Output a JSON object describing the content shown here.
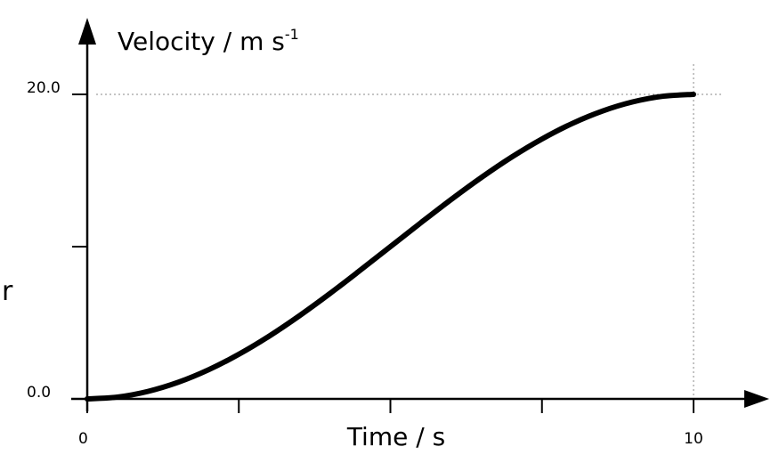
{
  "chart_data": {
    "type": "line",
    "xlabel": "Time / s",
    "ylabel": "Velocity / m s",
    "ylabel_superscript": "-1",
    "xlim": [
      0,
      10
    ],
    "ylim": [
      0,
      20
    ],
    "x_tick_labels": [
      "0",
      "10"
    ],
    "y_tick_labels": [
      "0.0",
      "20.0"
    ],
    "x_minor_ticks": [
      2.5,
      5,
      7.5
    ],
    "y_minor_ticks": [
      10
    ],
    "grid": false,
    "reference_lines": [
      {
        "axis": "y",
        "value": 20,
        "style": "dotted"
      },
      {
        "axis": "x",
        "value": 10,
        "style": "dotted"
      }
    ],
    "series": [
      {
        "x": [
          0,
          0.5,
          1,
          1.5,
          2,
          2.5,
          3,
          3.5,
          4,
          4.5,
          5,
          5.5,
          6,
          6.5,
          7,
          7.5,
          8,
          8.5,
          9,
          9.5,
          10
        ],
        "y": [
          0,
          0.12,
          0.49,
          1.09,
          1.91,
          2.93,
          4.12,
          5.46,
          6.91,
          8.44,
          10.0,
          11.56,
          13.09,
          14.54,
          15.88,
          17.07,
          18.09,
          18.91,
          19.51,
          19.88,
          20.0
        ]
      }
    ]
  },
  "left_edge_fragment": "r",
  "colors": {
    "line": "#000000",
    "reference": "#888888"
  }
}
